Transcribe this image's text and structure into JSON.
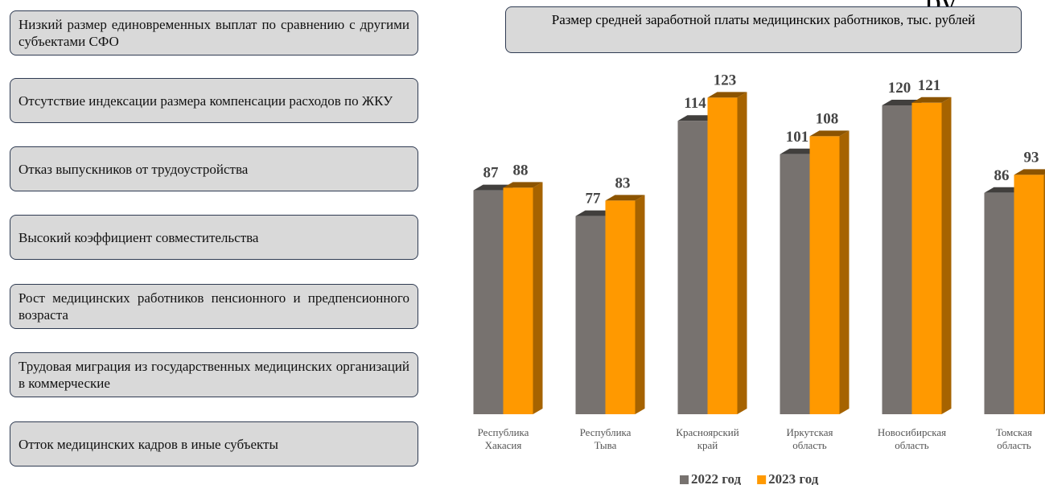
{
  "issues": [
    "Низкий размер единовременных выплат по сравнению с другими субъектами СФО",
    "Отсутствие индексации размера компенсации расходов по ЖКУ",
    "Отказ выпускников от трудоустройства",
    "Высокий коэффициент совместительства",
    "Рост медицинских работников пенсионного и предпенсионного возраста",
    "Трудовая миграция из государственных медицинских организаций в коммерческие",
    "Отток медицинских кадров в иные субъекты"
  ],
  "header_fragment": "ру",
  "chart_data": {
    "type": "bar",
    "title": "Размер средней заработной платы медицинских работников, тыс. рублей",
    "categories": [
      "Республика Хакасия",
      "Республика Тыва",
      "Красноярский край",
      "Иркутская область",
      "Новосибирская область",
      "Томская область"
    ],
    "series": [
      {
        "name": "2022 год",
        "color": "#77726f",
        "values": [
          87,
          77,
          114,
          101,
          120,
          86
        ]
      },
      {
        "name": "2023 год",
        "color": "#ff9900",
        "values": [
          88,
          83,
          123,
          108,
          121,
          93
        ]
      }
    ],
    "ylim": [
      0,
      150
    ],
    "legend": "bottom"
  }
}
